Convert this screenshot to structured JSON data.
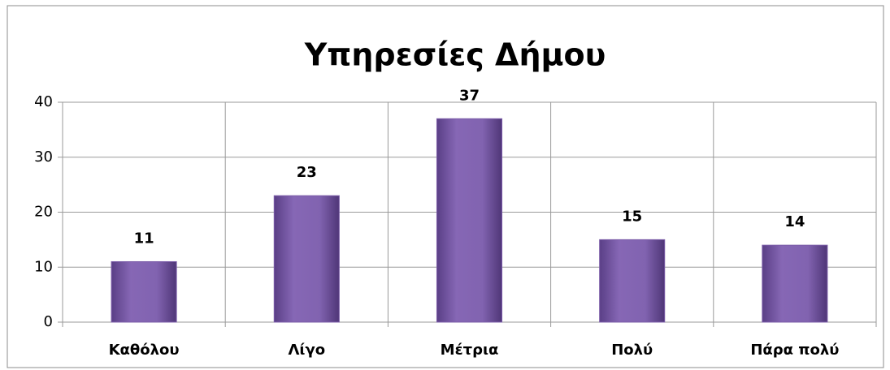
{
  "chart_data": {
    "type": "bar",
    "title": "Υπηρεσίες Δήμου",
    "categories": [
      "Καθόλου",
      "Λίγο",
      "Μέτρια",
      "Πολύ",
      "Πάρα πολύ"
    ],
    "values": [
      11,
      23,
      37,
      15,
      14
    ],
    "color": "#7b5ca8",
    "ylim": [
      0,
      40
    ],
    "yticks": [
      0,
      10,
      20,
      30,
      40
    ],
    "grid": true,
    "data_labels": true
  }
}
